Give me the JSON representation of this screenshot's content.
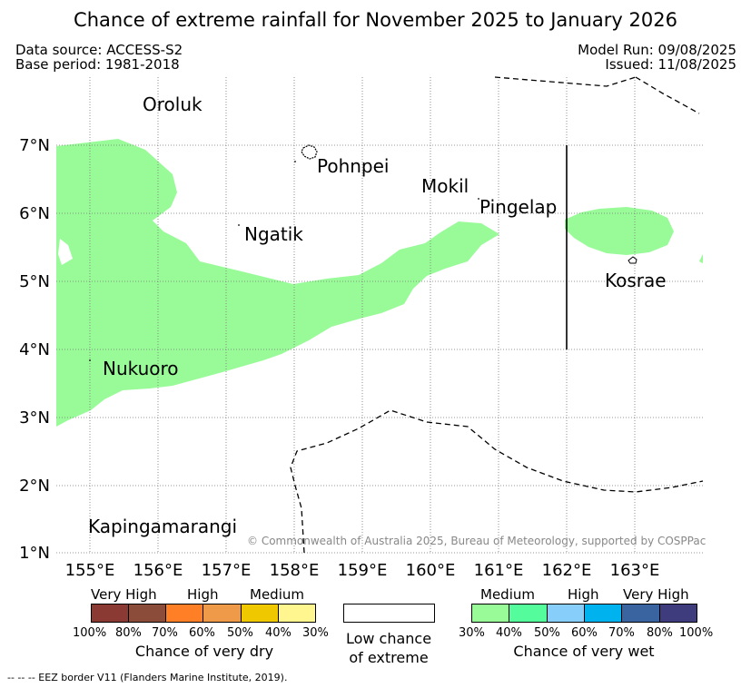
{
  "title": "Chance of extreme rainfall for November 2025 to January 2026",
  "meta": {
    "data_source": "Data source: ACCESS-S2",
    "base_period": "Base period: 1981-2018",
    "model_run": "Model Run: 09/08/2025",
    "issued": "Issued: 11/08/2025"
  },
  "map": {
    "lat_labels": [
      "7°N",
      "6°N",
      "5°N",
      "4°N",
      "3°N",
      "2°N",
      "1°N"
    ],
    "lon_labels": [
      "155°E",
      "156°E",
      "157°E",
      "158°E",
      "159°E",
      "160°E",
      "161°E",
      "162°E",
      "163°E"
    ],
    "places": {
      "oroluk": "Oroluk",
      "pohnpei": "Pohnpei",
      "mokil": "Mokil",
      "pingelap": "Pingelap",
      "ngatik": "Ngatik",
      "kosrae": "Kosrae",
      "nukuoro": "Nukuoro",
      "kapingamarangi": "Kapingamarangi"
    },
    "copyright": "© Commonwealth of Australia 2025, Bureau of Meteorology, supported by COSPPac",
    "colors": {
      "wet_medium": "#98fb98",
      "coast": "#000000"
    }
  },
  "legend": {
    "dry": {
      "headers": {
        "very_high": "Very High",
        "high": "High",
        "medium": "Medium"
      },
      "ticks": [
        "100%",
        "80%",
        "70%",
        "60%",
        "50%",
        "40%",
        "30%"
      ],
      "colors": [
        "#8b3a33",
        "#8b4c3a",
        "#ff7f27",
        "#ee9a48",
        "#f0c800",
        "#fff68f"
      ],
      "caption": "Chance of very dry"
    },
    "low": {
      "line1": "Low chance",
      "line2": "of extreme"
    },
    "wet": {
      "headers": {
        "medium": "Medium",
        "high": "High",
        "very_high": "Very High"
      },
      "ticks": [
        "30%",
        "40%",
        "50%",
        "60%",
        "70%",
        "80%",
        "100%"
      ],
      "colors": [
        "#98fb98",
        "#54fc9c",
        "#87cefa",
        "#00b2ee",
        "#3a64a0",
        "#3f3c7e"
      ],
      "caption": "Chance of very wet"
    }
  },
  "footer": "--  --  -- EEZ border V11 (Flanders Marine Institute, 2019)."
}
